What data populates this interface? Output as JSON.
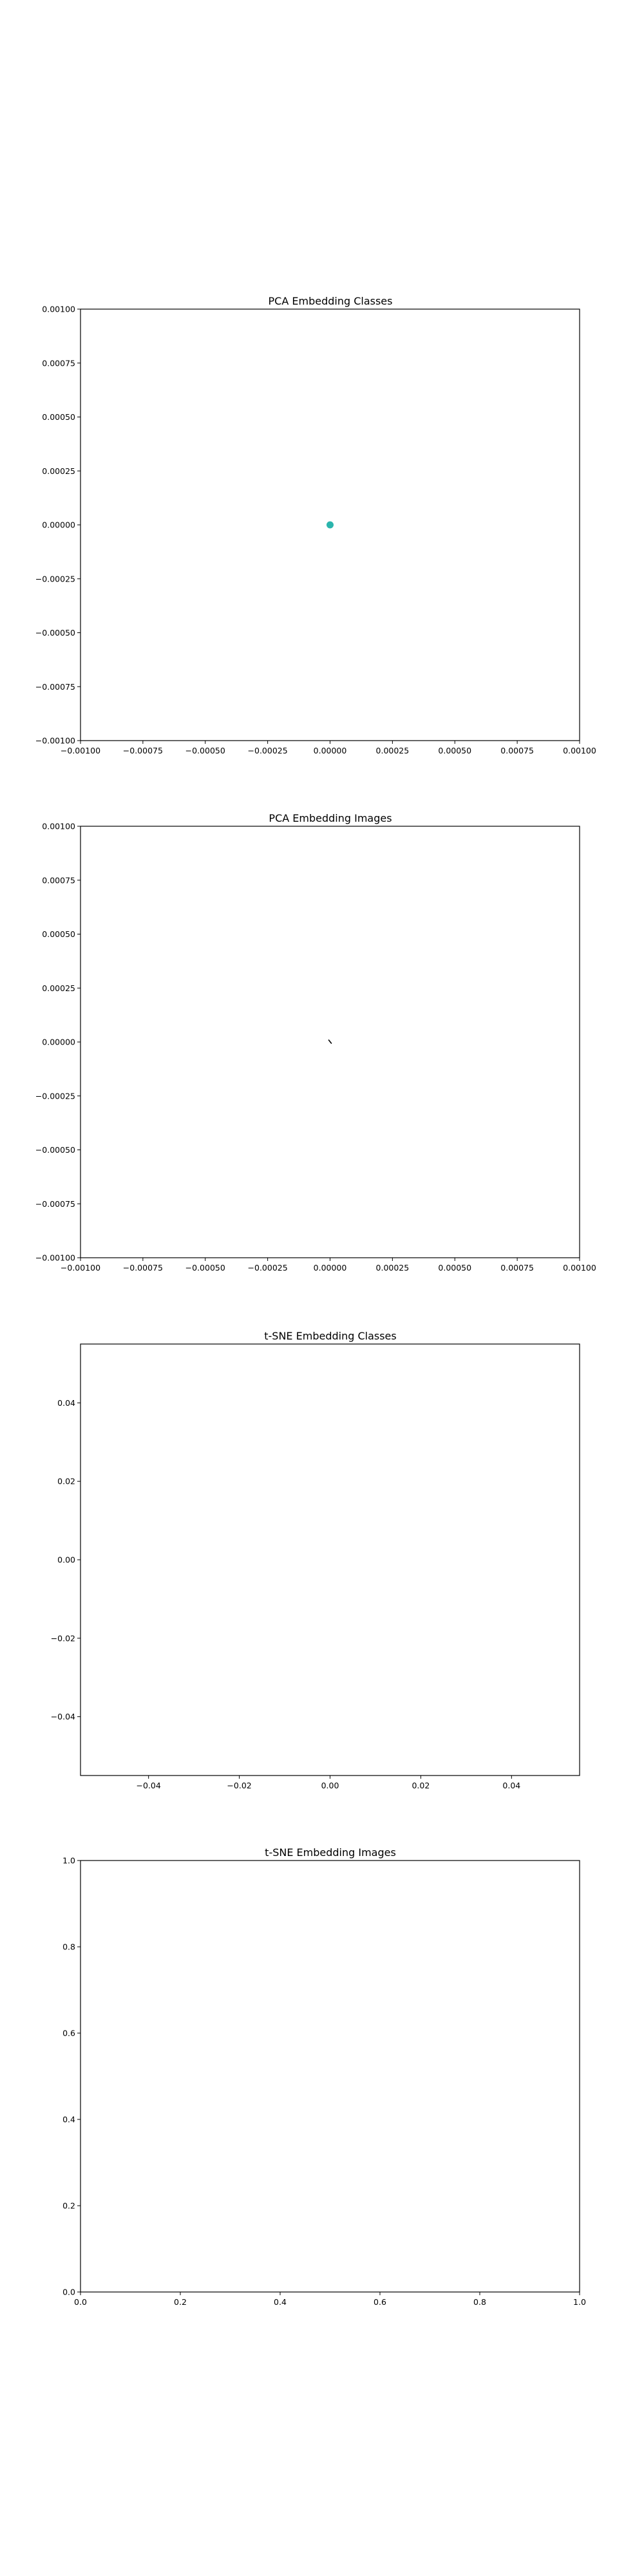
{
  "colors": {
    "point": "#2bb5ad",
    "axis": "#000000",
    "background": "#ffffff"
  },
  "chart_data": [
    {
      "type": "scatter",
      "title": "PCA Embedding Classes",
      "xlabel": "",
      "ylabel": "",
      "xlim": [
        -0.001,
        0.001
      ],
      "ylim": [
        -0.001,
        0.001
      ],
      "grid": false,
      "xticks": [
        -0.001,
        -0.00075,
        -0.0005,
        -0.00025,
        0,
        0.00025,
        0.0005,
        0.00075,
        0.001
      ],
      "xtick_labels": [
        "−0.00100",
        "−0.00075",
        "−0.00050",
        "−0.00025",
        "0.00000",
        "0.00025",
        "0.00050",
        "0.00075",
        "0.00100"
      ],
      "yticks": [
        0.001,
        0.00075,
        0.0005,
        0.00025,
        0,
        -0.00025,
        -0.0005,
        -0.00075,
        -0.001
      ],
      "ytick_labels": [
        "0.00100",
        "0.00075",
        "0.00050",
        "0.00025",
        "0.00000",
        "−0.00025",
        "−0.00050",
        "−0.00075",
        "−0.00100"
      ],
      "points": [
        {
          "x": 0,
          "y": 0,
          "marker": "circle"
        }
      ]
    },
    {
      "type": "scatter",
      "title": "PCA Embedding Images",
      "xlabel": "",
      "ylabel": "",
      "xlim": [
        -0.001,
        0.001
      ],
      "ylim": [
        -0.001,
        0.001
      ],
      "grid": false,
      "xticks": [
        -0.001,
        -0.00075,
        -0.0005,
        -0.00025,
        0,
        0.00025,
        0.0005,
        0.00075,
        0.001
      ],
      "xtick_labels": [
        "−0.00100",
        "−0.00075",
        "−0.00050",
        "−0.00025",
        "0.00000",
        "0.00025",
        "0.00050",
        "0.00075",
        "0.00100"
      ],
      "yticks": [
        0.001,
        0.00075,
        0.0005,
        0.00025,
        0,
        -0.00025,
        -0.0005,
        -0.00075,
        -0.001
      ],
      "ytick_labels": [
        "0.00100",
        "0.00075",
        "0.00050",
        "0.00025",
        "0.00000",
        "−0.00025",
        "−0.00050",
        "−0.00075",
        "−0.00100"
      ],
      "points": [
        {
          "x": 0,
          "y": 0,
          "marker": "small-mark"
        }
      ]
    },
    {
      "type": "scatter",
      "title": "t-SNE Embedding Classes",
      "xlabel": "",
      "ylabel": "",
      "xlim": [
        -0.055,
        0.055
      ],
      "ylim": [
        -0.055,
        0.055
      ],
      "grid": false,
      "xticks": [
        -0.04,
        -0.02,
        0,
        0.02,
        0.04
      ],
      "xtick_labels": [
        "−0.04",
        "−0.02",
        "0.00",
        "0.02",
        "0.04"
      ],
      "yticks": [
        0.04,
        0.02,
        0,
        -0.02,
        -0.04
      ],
      "ytick_labels": [
        "0.04",
        "0.02",
        "0.00",
        "−0.02",
        "−0.04"
      ],
      "points": []
    },
    {
      "type": "scatter",
      "title": "t-SNE Embedding Images",
      "xlabel": "",
      "ylabel": "",
      "xlim": [
        0,
        1
      ],
      "ylim": [
        0,
        1
      ],
      "grid": false,
      "xticks": [
        0,
        0.2,
        0.4,
        0.6,
        0.8,
        1
      ],
      "xtick_labels": [
        "0.0",
        "0.2",
        "0.4",
        "0.6",
        "0.8",
        "1.0"
      ],
      "yticks": [
        1,
        0.8,
        0.6,
        0.4,
        0.2,
        0
      ],
      "ytick_labels": [
        "1.0",
        "0.8",
        "0.6",
        "0.4",
        "0.2",
        "0.0"
      ],
      "points": []
    }
  ]
}
